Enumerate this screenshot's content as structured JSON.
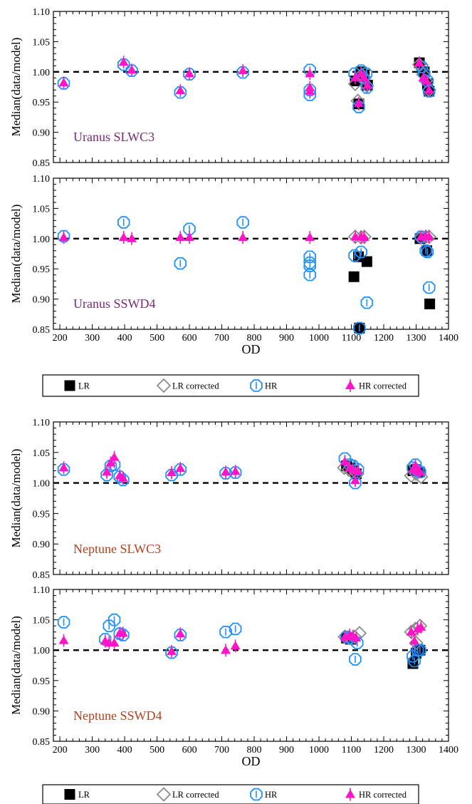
{
  "colors": {
    "LR": "#000000",
    "LR_corrected": "#8c8c8c",
    "HR": "#1e90ff",
    "HR_corrected": "#ff14c8",
    "uranus_label": "#7a2a78",
    "neptune_label": "#b8401c"
  },
  "legend": {
    "entries": [
      {
        "key": "LR",
        "label": "LR"
      },
      {
        "key": "LR_corrected",
        "label": "LR corrected"
      },
      {
        "key": "HR",
        "label": "HR"
      },
      {
        "key": "HR_corrected",
        "label": "HR corrected"
      }
    ]
  },
  "chart_data": [
    {
      "type": "scatter",
      "label": "Uranus SLWC3",
      "ylabel": "Median(data/model)",
      "xlabel": "",
      "xlim": [
        180,
        1400
      ],
      "ylim": [
        0.85,
        1.1
      ],
      "reference_y": 1.0,
      "yticks": [
        "0.85",
        "0.90",
        "0.95",
        "1.00",
        "1.05",
        "1.10"
      ],
      "xticks": [],
      "series": [
        {
          "name": "LR",
          "points": [
            [
              1112,
              0.985
            ],
            [
              1123,
              0.947
            ],
            [
              1130,
              1.0
            ],
            [
              1140,
              0.995
            ],
            [
              1150,
              0.978
            ],
            [
              1310,
              1.015
            ],
            [
              1325,
              1.0
            ],
            [
              1335,
              0.98
            ],
            [
              1340,
              0.968
            ]
          ]
        },
        {
          "name": "LR corrected",
          "points": [
            [
              1112,
              0.98
            ],
            [
              1120,
              0.952
            ],
            [
              1132,
              0.995
            ],
            [
              1140,
              0.99
            ],
            [
              1148,
              0.977
            ],
            [
              1310,
              1.012
            ],
            [
              1322,
              0.996
            ],
            [
              1330,
              0.985
            ],
            [
              1340,
              0.97
            ]
          ]
        },
        {
          "name": "HR",
          "points": [
            [
              212,
              0.981
            ],
            [
              397,
              1.012
            ],
            [
              422,
              1.002
            ],
            [
              572,
              0.966
            ],
            [
              600,
              0.996
            ],
            [
              765,
              0.999
            ],
            [
              972,
              1.003
            ],
            [
              972,
              0.97
            ],
            [
              972,
              0.962
            ],
            [
              1110,
              0.997
            ],
            [
              1123,
              0.942
            ],
            [
              1130,
              1.002
            ],
            [
              1137,
              0.99
            ],
            [
              1146,
              0.997
            ],
            [
              1148,
              0.974
            ],
            [
              1318,
              1.008
            ],
            [
              1325,
              0.997
            ],
            [
              1335,
              0.985
            ],
            [
              1340,
              0.968
            ]
          ]
        },
        {
          "name": "HR corrected",
          "points": [
            [
              212,
              0.982
            ],
            [
              397,
              1.016
            ],
            [
              422,
              1.003
            ],
            [
              572,
              0.969
            ],
            [
              600,
              0.997
            ],
            [
              765,
              1.002
            ],
            [
              972,
              0.997
            ],
            [
              972,
              0.974
            ],
            [
              972,
              0.968
            ],
            [
              1112,
              0.99
            ],
            [
              1123,
              0.948
            ],
            [
              1130,
              0.997
            ],
            [
              1140,
              0.99
            ],
            [
              1150,
              0.978
            ],
            [
              1310,
              1.015
            ],
            [
              1322,
              0.99
            ],
            [
              1332,
              0.985
            ],
            [
              1340,
              0.97
            ]
          ]
        }
      ]
    },
    {
      "type": "scatter",
      "label": "Uranus SSWD4",
      "ylabel": "Median(data/model)",
      "xlabel": "OD",
      "xlim": [
        180,
        1400
      ],
      "ylim": [
        0.85,
        1.1
      ],
      "reference_y": 1.0,
      "yticks": [
        "0.85",
        "0.90",
        "0.95",
        "1.00",
        "1.05",
        "1.10"
      ],
      "xticks": [
        "200",
        "300",
        "400",
        "500",
        "600",
        "700",
        "800",
        "900",
        "1000",
        "1100",
        "1200",
        "1300",
        "1400"
      ],
      "series": [
        {
          "name": "LR",
          "points": [
            [
              1108,
              0.937
            ],
            [
              1122,
              0.97
            ],
            [
              1125,
              0.852
            ],
            [
              1148,
              0.962
            ],
            [
              1312,
              1.0
            ],
            [
              1333,
              0.98
            ],
            [
              1342,
              0.892
            ]
          ]
        },
        {
          "name": "LR corrected",
          "points": [
            [
              1112,
              1.003
            ],
            [
              1130,
              1.002
            ],
            [
              1140,
              1.003
            ],
            [
              1315,
              1.002
            ],
            [
              1330,
              1.003
            ],
            [
              1340,
              1.003
            ]
          ]
        },
        {
          "name": "HR",
          "points": [
            [
              212,
              1.004
            ],
            [
              397,
              1.027
            ],
            [
              572,
              0.959
            ],
            [
              600,
              1.016
            ],
            [
              765,
              1.027
            ],
            [
              972,
              0.97
            ],
            [
              972,
              0.96
            ],
            [
              972,
              0.955
            ],
            [
              972,
              0.94
            ],
            [
              1110,
              0.972
            ],
            [
              1125,
              0.852
            ],
            [
              1130,
              0.978
            ],
            [
              1148,
              0.894
            ],
            [
              1315,
              1.003
            ],
            [
              1330,
              0.98
            ],
            [
              1335,
              0.978
            ],
            [
              1340,
              0.919
            ]
          ]
        },
        {
          "name": "HR corrected",
          "points": [
            [
              212,
              1.002
            ],
            [
              397,
              1.002
            ],
            [
              422,
              1.0
            ],
            [
              572,
              1.002
            ],
            [
              600,
              1.002
            ],
            [
              765,
              1.002
            ],
            [
              972,
              1.002
            ],
            [
              1112,
              1.003
            ],
            [
              1130,
              1.003
            ],
            [
              1140,
              1.002
            ],
            [
              1315,
              1.003
            ],
            [
              1330,
              1.004
            ],
            [
              1340,
              1.003
            ]
          ]
        }
      ]
    },
    {
      "type": "scatter",
      "label": "Neptune SLWC3",
      "ylabel": "Median(data/model)",
      "xlabel": "",
      "xlim": [
        180,
        1400
      ],
      "ylim": [
        0.85,
        1.1
      ],
      "reference_y": 1.0,
      "yticks": [
        "0.85",
        "0.90",
        "0.95",
        "1.00",
        "1.05",
        "1.10"
      ],
      "xticks": [],
      "series": [
        {
          "name": "LR",
          "points": [
            [
              1085,
              1.028
            ],
            [
              1095,
              1.025
            ],
            [
              1105,
              1.02
            ],
            [
              1115,
              1.015
            ],
            [
              1290,
              1.02
            ],
            [
              1300,
              1.022
            ],
            [
              1310,
              1.018
            ]
          ]
        },
        {
          "name": "LR corrected",
          "points": [
            [
              1078,
              1.025
            ],
            [
              1092,
              1.022
            ],
            [
              1102,
              1.018
            ],
            [
              1118,
              1.015
            ],
            [
              1285,
              1.012
            ],
            [
              1300,
              1.015
            ],
            [
              1315,
              1.01
            ]
          ]
        },
        {
          "name": "HR",
          "points": [
            [
              212,
              1.022
            ],
            [
              345,
              1.013
            ],
            [
              357,
              1.028
            ],
            [
              368,
              1.03
            ],
            [
              385,
              1.01
            ],
            [
              395,
              1.005
            ],
            [
              545,
              1.013
            ],
            [
              572,
              1.022
            ],
            [
              712,
              1.016
            ],
            [
              742,
              1.017
            ],
            [
              1080,
              1.04
            ],
            [
              1095,
              1.03
            ],
            [
              1105,
              1.028
            ],
            [
              1112,
              1.0
            ],
            [
              1120,
              1.022
            ],
            [
              1290,
              1.025
            ],
            [
              1298,
              1.03
            ],
            [
              1305,
              1.02
            ],
            [
              1312,
              1.018
            ]
          ]
        },
        {
          "name": "HR corrected",
          "points": [
            [
              212,
              1.025
            ],
            [
              345,
              1.018
            ],
            [
              357,
              1.033
            ],
            [
              368,
              1.042
            ],
            [
              385,
              1.012
            ],
            [
              395,
              1.008
            ],
            [
              545,
              1.017
            ],
            [
              572,
              1.024
            ],
            [
              712,
              1.018
            ],
            [
              742,
              1.019
            ],
            [
              1080,
              1.035
            ],
            [
              1095,
              1.025
            ],
            [
              1105,
              1.022
            ],
            [
              1112,
              1.004
            ],
            [
              1120,
              1.02
            ],
            [
              1290,
              1.022
            ],
            [
              1298,
              1.028
            ],
            [
              1305,
              1.02
            ],
            [
              1312,
              1.018
            ]
          ]
        }
      ]
    },
    {
      "type": "scatter",
      "label": "Neptune SSWD4",
      "ylabel": "Median(data/model)",
      "xlabel": "OD",
      "xlim": [
        180,
        1400
      ],
      "ylim": [
        0.85,
        1.1
      ],
      "reference_y": 1.0,
      "yticks": [
        "0.85",
        "0.90",
        "0.95",
        "1.00",
        "1.05",
        "1.10"
      ],
      "xticks": [
        "200",
        "300",
        "400",
        "500",
        "600",
        "700",
        "800",
        "900",
        "1000",
        "1100",
        "1200",
        "1300",
        "1400"
      ],
      "series": [
        {
          "name": "LR",
          "points": [
            [
              1085,
              1.02
            ],
            [
              1098,
              1.018
            ],
            [
              1290,
              0.978
            ],
            [
              1300,
              0.995
            ],
            [
              1312,
              1.0
            ]
          ]
        },
        {
          "name": "LR corrected",
          "points": [
            [
              1080,
              1.022
            ],
            [
              1095,
              1.02
            ],
            [
              1110,
              1.022
            ],
            [
              1125,
              1.028
            ],
            [
              1285,
              1.03
            ],
            [
              1298,
              1.035
            ],
            [
              1312,
              1.04
            ],
            [
              1300,
              1.012
            ]
          ]
        },
        {
          "name": "HR",
          "points": [
            [
              212,
              1.046
            ],
            [
              340,
              1.018
            ],
            [
              352,
              1.04
            ],
            [
              368,
              1.05
            ],
            [
              385,
              1.027
            ],
            [
              395,
              1.025
            ],
            [
              545,
              0.996
            ],
            [
              572,
              1.025
            ],
            [
              712,
              1.03
            ],
            [
              742,
              1.035
            ],
            [
              1085,
              1.022
            ],
            [
              1095,
              1.02
            ],
            [
              1112,
              0.985
            ],
            [
              1118,
              1.012
            ],
            [
              1290,
              0.99
            ],
            [
              1295,
              0.982
            ],
            [
              1305,
              1.0
            ],
            [
              1312,
              1.0
            ]
          ]
        },
        {
          "name": "HR corrected",
          "points": [
            [
              212,
              1.016
            ],
            [
              340,
              1.015
            ],
            [
              352,
              1.012
            ],
            [
              368,
              1.012
            ],
            [
              385,
              1.028
            ],
            [
              395,
              1.028
            ],
            [
              545,
              0.998
            ],
            [
              572,
              1.027
            ],
            [
              712,
              1.0
            ],
            [
              742,
              1.007
            ],
            [
              1080,
              1.022
            ],
            [
              1095,
              1.025
            ],
            [
              1105,
              1.023
            ],
            [
              1115,
              1.02
            ],
            [
              1285,
              1.03
            ],
            [
              1295,
              1.015
            ],
            [
              1305,
              1.035
            ],
            [
              1315,
              1.038
            ]
          ]
        }
      ]
    }
  ]
}
